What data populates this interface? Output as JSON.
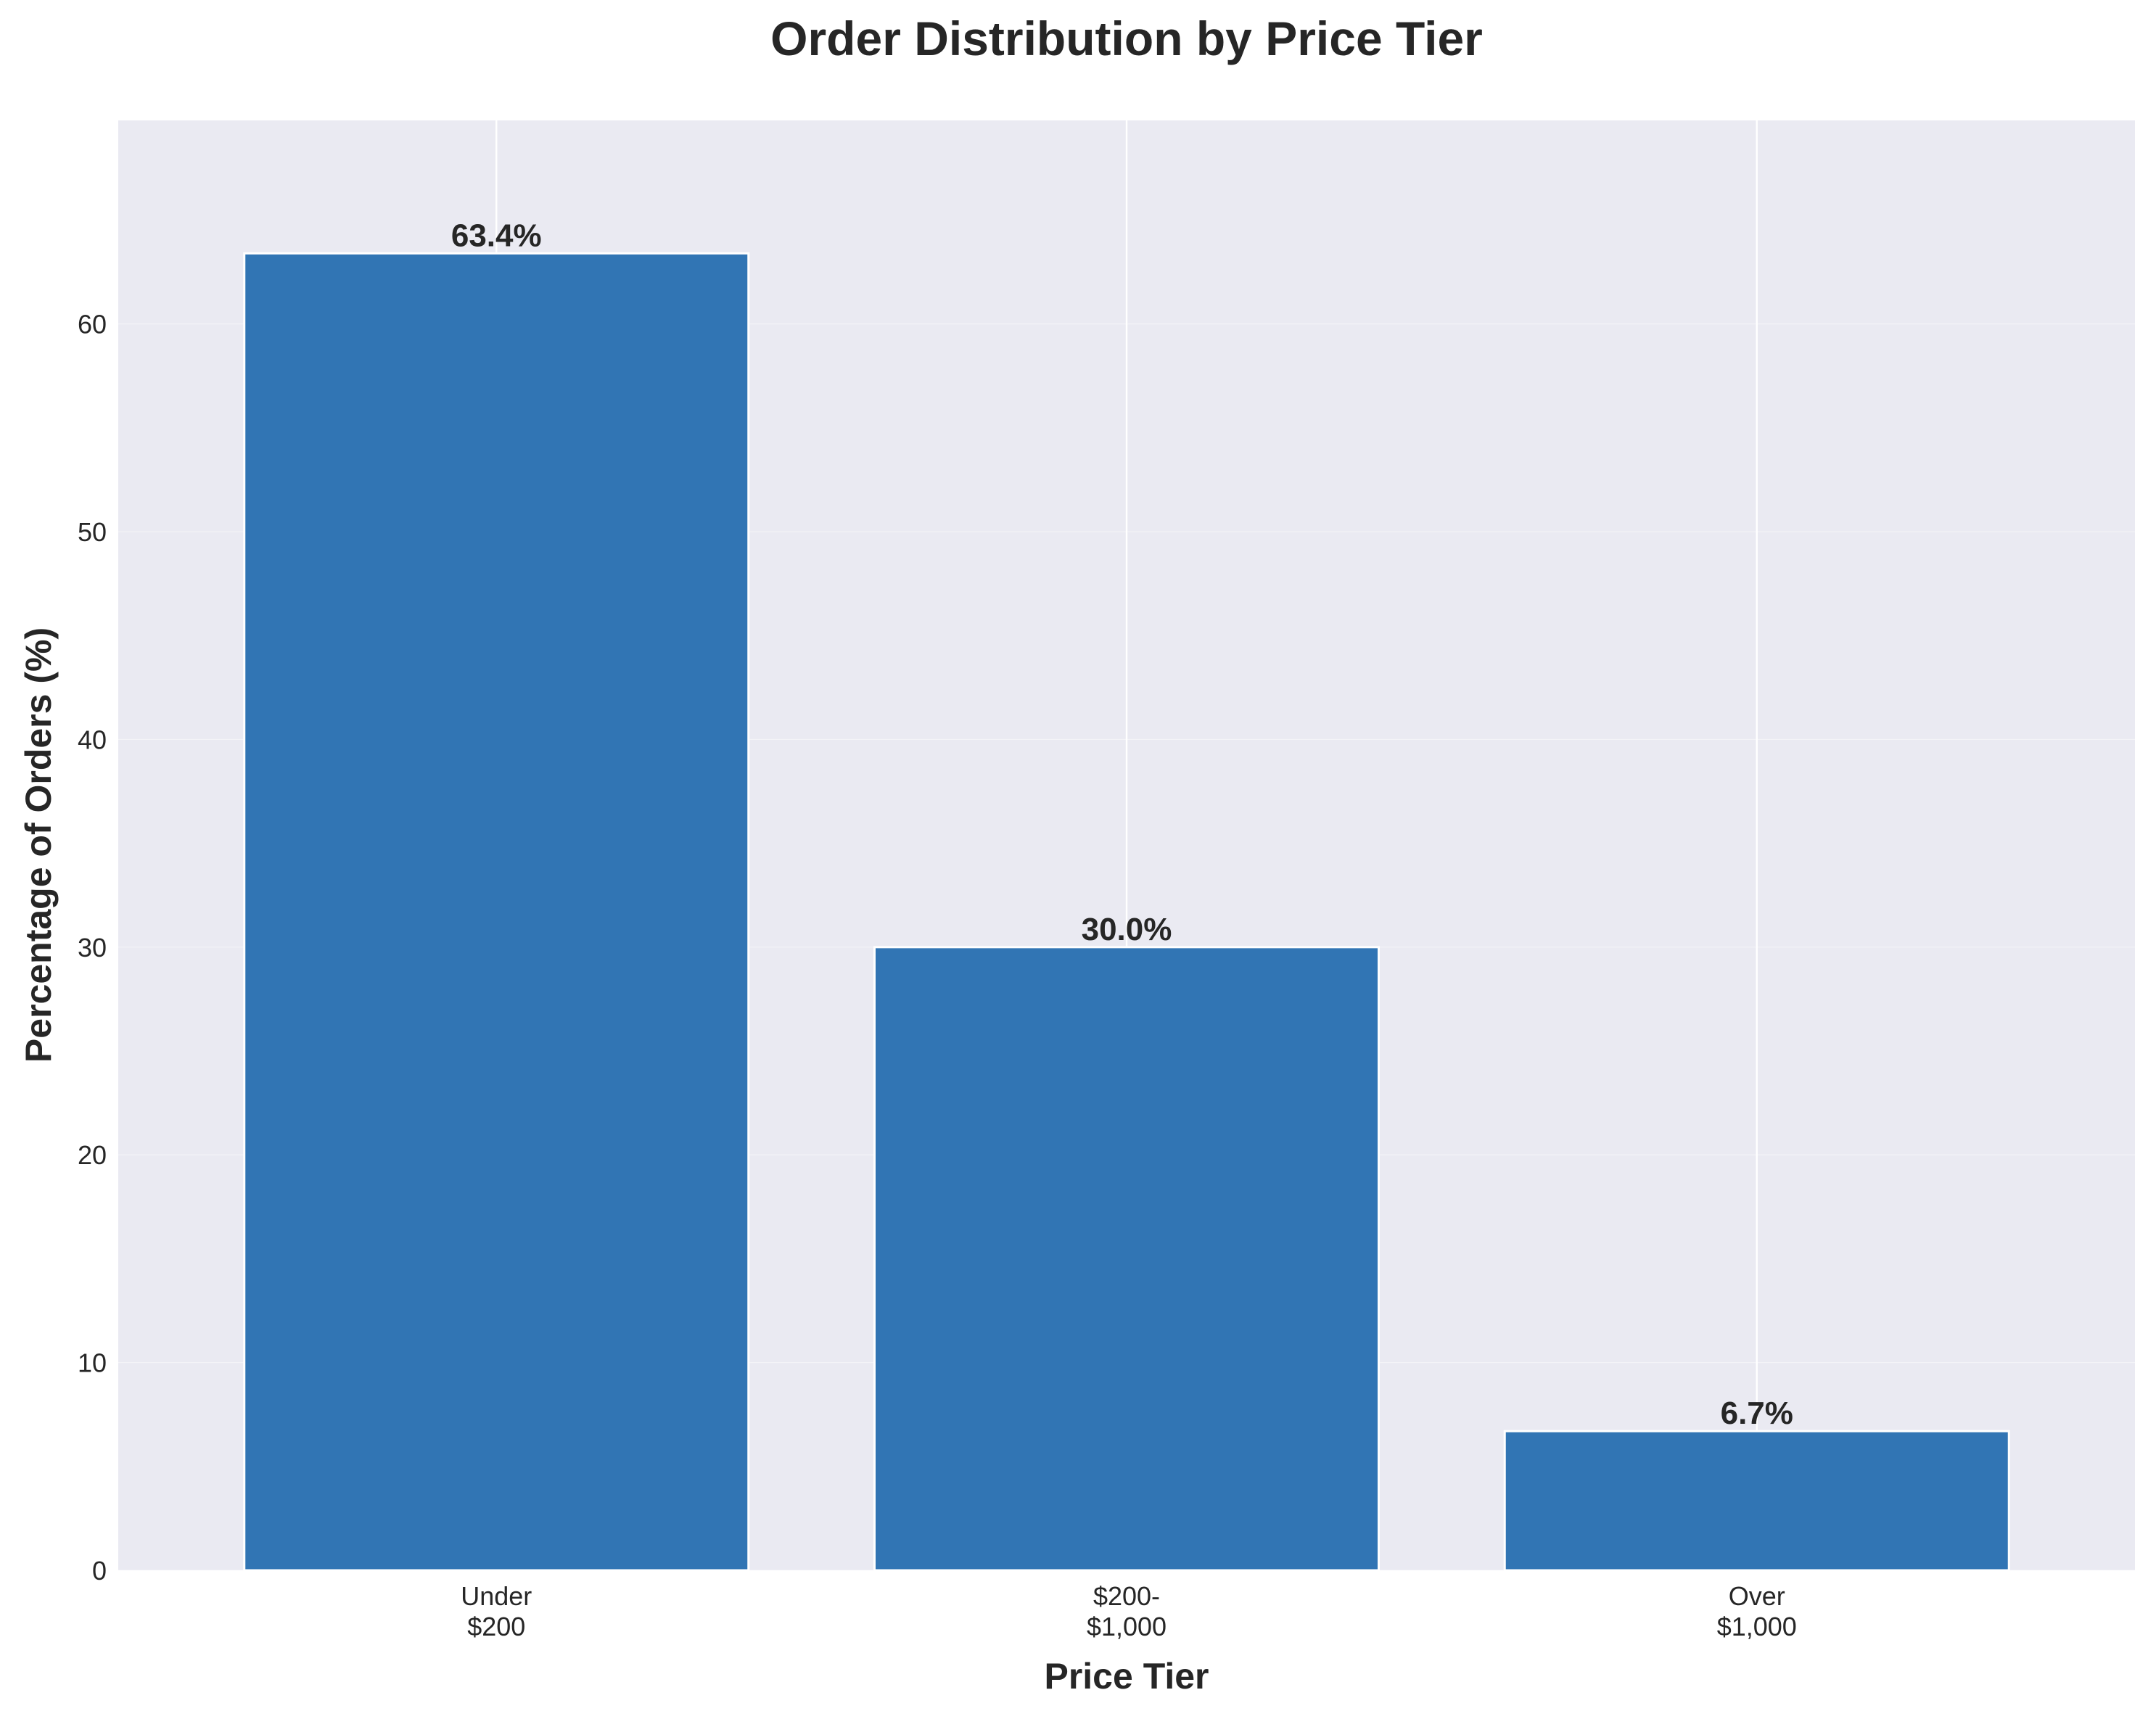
{
  "chart_data": {
    "type": "bar",
    "title": "Order Distribution by Price Tier",
    "xlabel": "Price Tier",
    "ylabel": "Percentage of Orders (%)",
    "categories": [
      [
        "Under",
        "$200"
      ],
      [
        "$200-",
        "$1,000"
      ],
      [
        "Over",
        "$1,000"
      ]
    ],
    "values": [
      63.4,
      30.0,
      6.7
    ],
    "value_labels": [
      "63.4%",
      "30.0%",
      "6.7%"
    ],
    "yticks": [
      0,
      10,
      20,
      30,
      40,
      50,
      60
    ],
    "ylim": [
      0,
      69.8
    ],
    "grid": true,
    "colors": {
      "bar": "#3175b4",
      "bar_edge": "#ffffff",
      "plot_background": "#eaeaf2",
      "grid": "#ffffff",
      "text": "#262626"
    }
  }
}
